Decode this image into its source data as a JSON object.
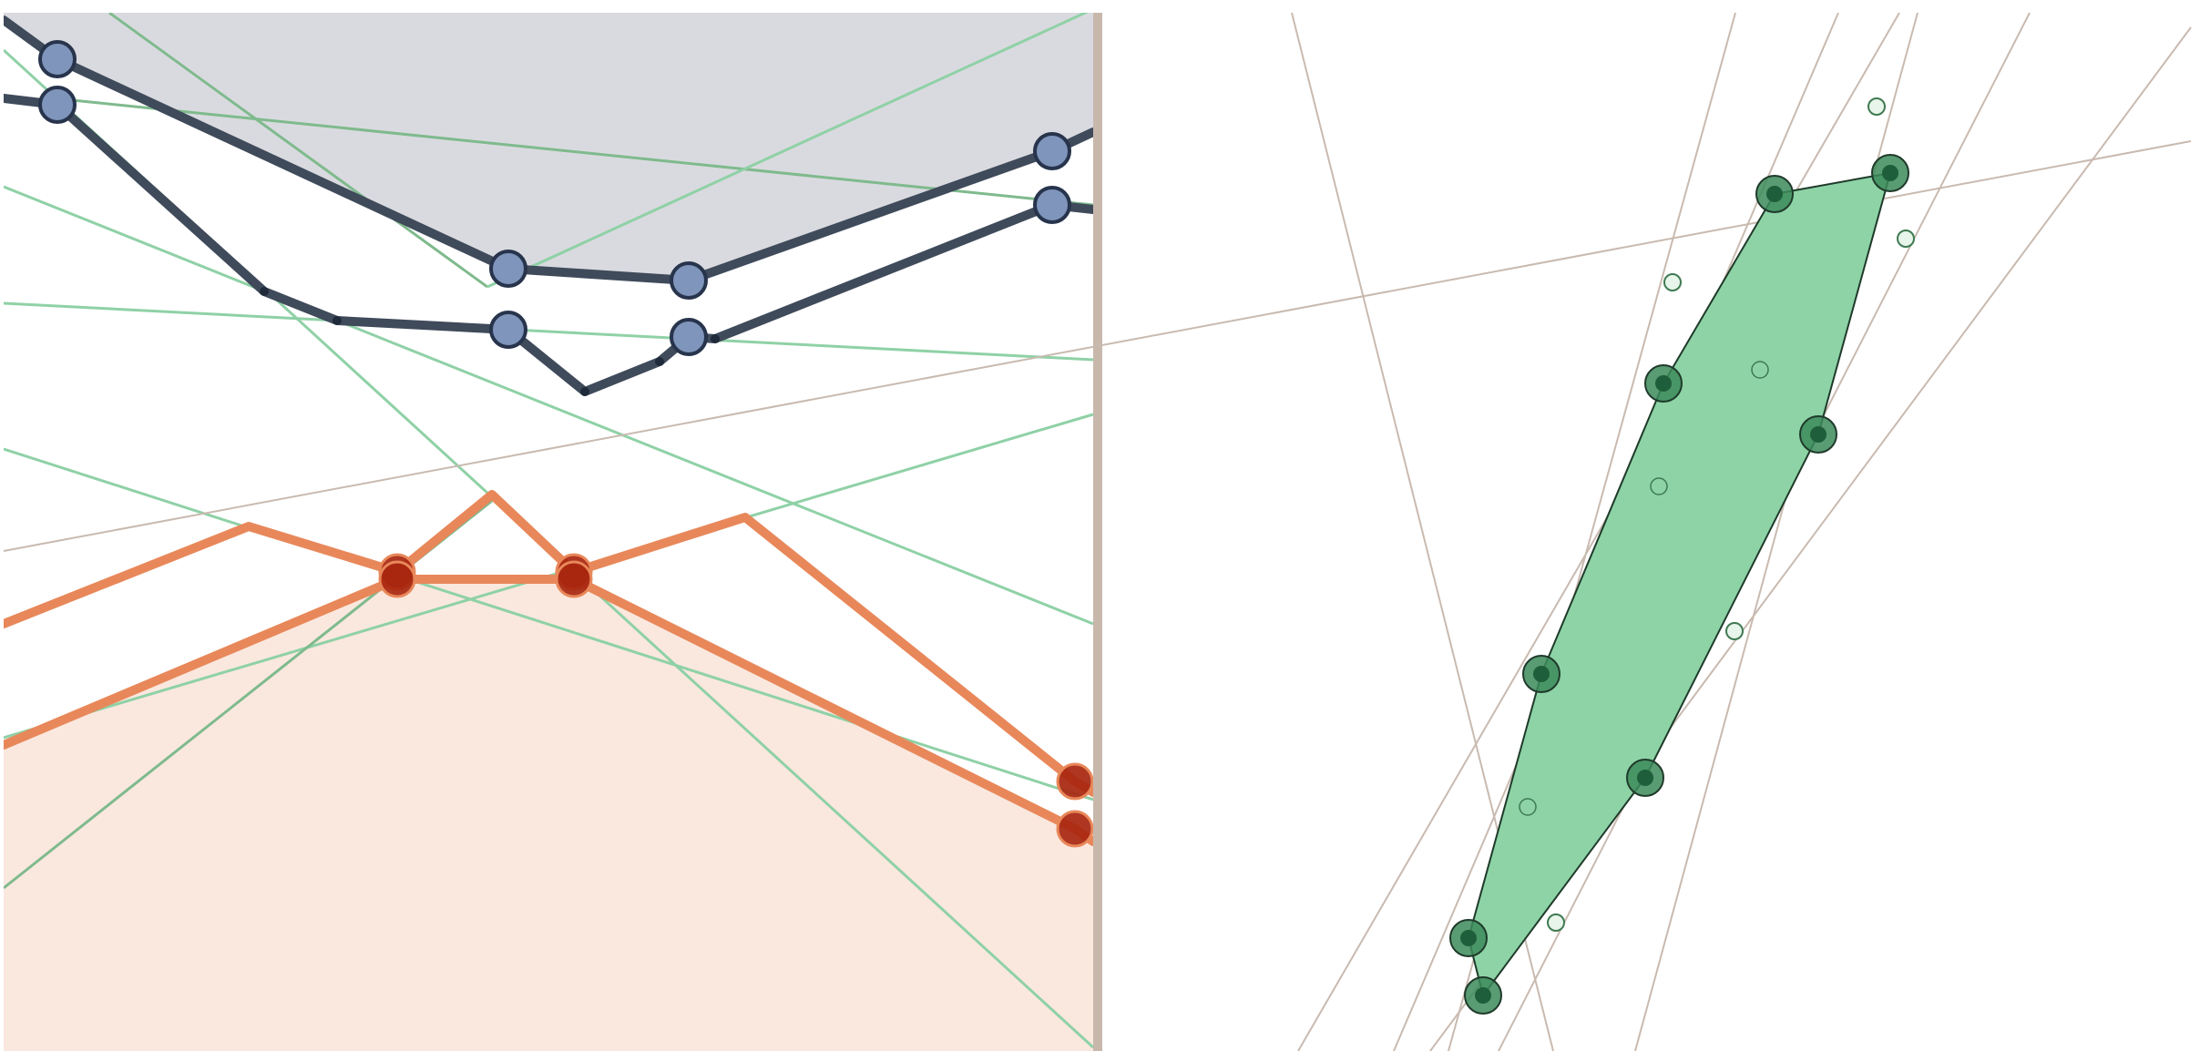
{
  "colors": {
    "background": "#ffffff",
    "upper_fill": "#d9dadf",
    "lower_fill": "#fae8df",
    "dark_line": "#3f4a5a",
    "dark_line_node": "#1f2a3a",
    "blue_node_fill": "#7f95bb",
    "blue_node_stroke": "#27344c",
    "orange_line": "#e8885a",
    "red_node_fill": "#a8260f",
    "red_node_stroke": "#e8885a",
    "green_line": "#8fd1a6",
    "green_line_dark": "#7fba8d",
    "divider": "#c8b8ac",
    "construction_line": "#c9bab0",
    "polygon_fill": "#8dd3a6",
    "polygon_stroke": "#1f3a2a",
    "vertex_outer": "#3c8a5a",
    "vertex_inner": "#1f5e3a",
    "marker_fill": "#e7f5ea",
    "marker_stroke": "#3f7a52",
    "marker_mid_fill": "#8dd3a6"
  },
  "icons": {
    "vertex": "vertex-node-icon",
    "point": "point-marker-icon"
  }
}
